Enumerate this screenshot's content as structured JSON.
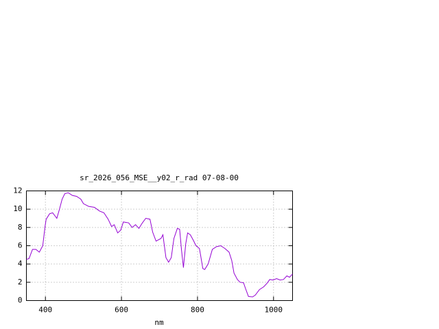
{
  "chart_data": {
    "type": "line",
    "title": "sr_2026_056_MSE__y02_r_rad 07-08-00",
    "x_label": "nm",
    "x": [
      350,
      357,
      366,
      375,
      384,
      393,
      399,
      402,
      411,
      419,
      430,
      437,
      444,
      451,
      460,
      471,
      482,
      493,
      500,
      514,
      529,
      542,
      554,
      565,
      574,
      581,
      590,
      598,
      605,
      619,
      628,
      637,
      646,
      655,
      664,
      675,
      682,
      691,
      704,
      709,
      717,
      724,
      731,
      738,
      747,
      753,
      758,
      763,
      769,
      774,
      781,
      789,
      796,
      805,
      808,
      814,
      819,
      828,
      839,
      850,
      861,
      872,
      883,
      890,
      896,
      905,
      912,
      921,
      926,
      934,
      945,
      952,
      963,
      974,
      983,
      990,
      999,
      1008,
      1017,
      1026,
      1035,
      1042,
      1050
    ],
    "series": [
      {
        "color": "#9400d3",
        "values": [
          4.5,
          4.6,
          5.6,
          5.6,
          5.3,
          6.0,
          8.1,
          8.9,
          9.5,
          9.6,
          9.0,
          10.0,
          11.1,
          11.7,
          11.8,
          11.5,
          11.4,
          11.1,
          10.6,
          10.3,
          10.2,
          9.8,
          9.6,
          8.9,
          8.1,
          8.3,
          7.4,
          7.7,
          8.6,
          8.5,
          8.0,
          8.3,
          7.9,
          8.5,
          9.0,
          8.9,
          7.5,
          6.5,
          6.8,
          7.2,
          4.7,
          4.2,
          4.7,
          6.8,
          7.9,
          7.8,
          5.5,
          3.6,
          6.2,
          7.4,
          7.2,
          6.6,
          6.0,
          5.7,
          5.0,
          3.5,
          3.4,
          4.0,
          5.6,
          5.9,
          6.0,
          5.7,
          5.3,
          4.4,
          3.0,
          2.3,
          2.0,
          1.95,
          1.35,
          0.45,
          0.4,
          0.6,
          1.2,
          1.5,
          1.9,
          2.3,
          2.25,
          2.4,
          2.25,
          2.3,
          2.7,
          2.55,
          2.9
        ]
      }
    ],
    "xlim": [
      350,
      1050
    ],
    "xticks": [
      400,
      600,
      800,
      1000
    ],
    "ylim": [
      0,
      12
    ],
    "yticks": [
      0,
      2,
      4,
      6,
      8,
      10,
      12
    ],
    "grid": true
  }
}
